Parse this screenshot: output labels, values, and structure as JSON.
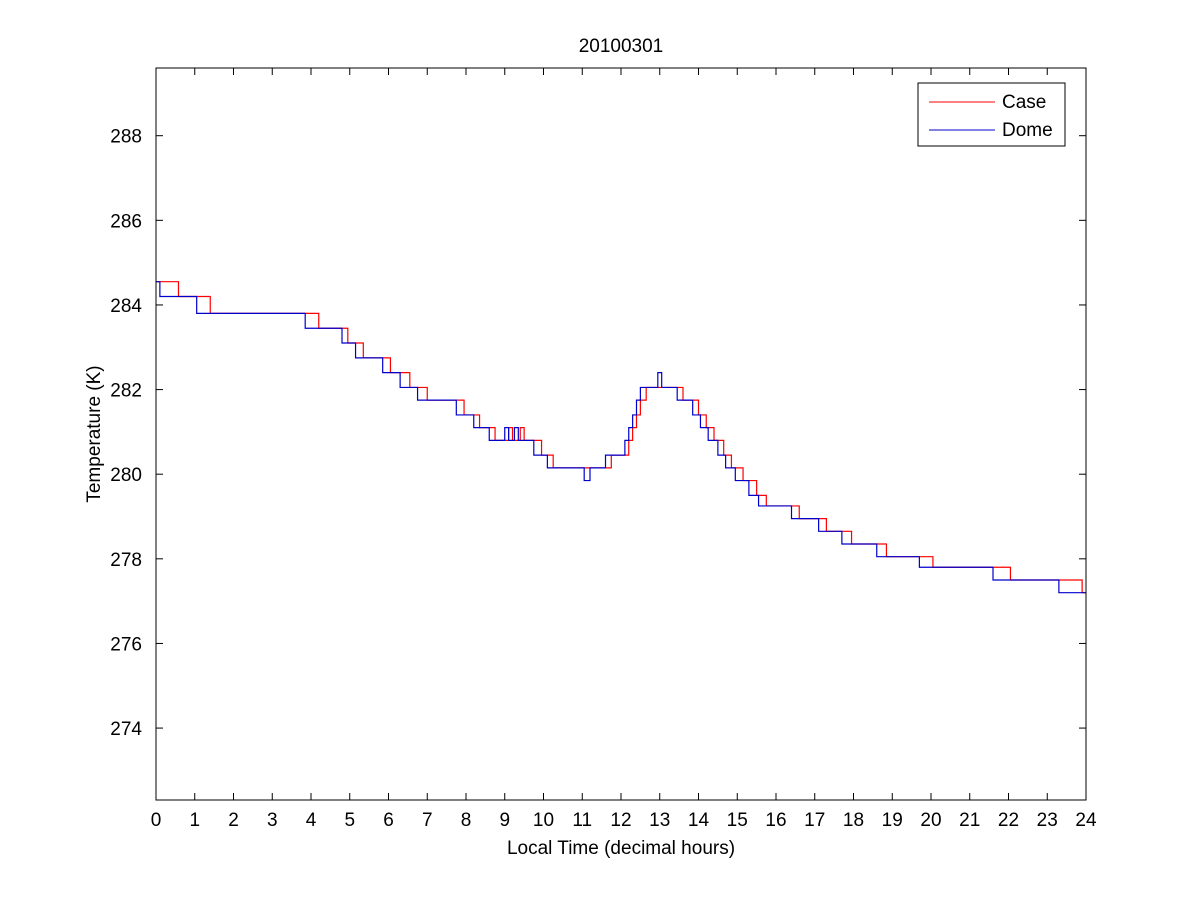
{
  "chart_data": {
    "type": "line",
    "title": "20100301",
    "xlabel": "Local Time (decimal hours)",
    "ylabel": "Temperature (K)",
    "xlim": [
      0,
      24
    ],
    "ylim": [
      272.3,
      289.6
    ],
    "xticks": [
      0,
      1,
      2,
      3,
      4,
      5,
      6,
      7,
      8,
      9,
      10,
      11,
      12,
      13,
      14,
      15,
      16,
      17,
      18,
      19,
      20,
      21,
      22,
      23,
      24
    ],
    "yticks": [
      274,
      276,
      278,
      280,
      282,
      284,
      286,
      288
    ],
    "grid": false,
    "legend_position": "top-right",
    "series": [
      {
        "name": "Case",
        "color": "#ff0000",
        "step": true,
        "points": [
          [
            0.0,
            284.55
          ],
          [
            0.58,
            284.2
          ],
          [
            1.4,
            283.8
          ],
          [
            4.2,
            283.45
          ],
          [
            4.95,
            283.1
          ],
          [
            5.35,
            282.75
          ],
          [
            6.05,
            282.4
          ],
          [
            6.55,
            282.05
          ],
          [
            7.0,
            281.75
          ],
          [
            7.95,
            281.4
          ],
          [
            8.35,
            281.1
          ],
          [
            8.75,
            280.8
          ],
          [
            9.1,
            281.1
          ],
          [
            9.2,
            280.8
          ],
          [
            9.4,
            281.1
          ],
          [
            9.5,
            280.8
          ],
          [
            9.95,
            280.45
          ],
          [
            10.25,
            280.15
          ],
          [
            11.75,
            280.45
          ],
          [
            12.2,
            280.8
          ],
          [
            12.3,
            281.1
          ],
          [
            12.4,
            281.4
          ],
          [
            12.5,
            281.75
          ],
          [
            12.65,
            282.05
          ],
          [
            13.6,
            281.75
          ],
          [
            14.0,
            281.4
          ],
          [
            14.2,
            281.1
          ],
          [
            14.4,
            280.8
          ],
          [
            14.65,
            280.45
          ],
          [
            14.85,
            280.15
          ],
          [
            15.15,
            279.85
          ],
          [
            15.5,
            279.5
          ],
          [
            15.75,
            279.25
          ],
          [
            16.6,
            278.95
          ],
          [
            17.3,
            278.65
          ],
          [
            17.95,
            278.35
          ],
          [
            18.85,
            278.05
          ],
          [
            20.05,
            277.8
          ],
          [
            22.05,
            277.5
          ],
          [
            23.9,
            277.2
          ],
          [
            24.0,
            277.2
          ]
        ]
      },
      {
        "name": "Dome",
        "color": "#0000cc",
        "step": true,
        "points": [
          [
            0.0,
            284.55
          ],
          [
            0.1,
            284.2
          ],
          [
            1.05,
            283.8
          ],
          [
            3.85,
            283.45
          ],
          [
            4.8,
            283.1
          ],
          [
            5.15,
            282.75
          ],
          [
            5.85,
            282.4
          ],
          [
            6.3,
            282.05
          ],
          [
            6.75,
            281.75
          ],
          [
            7.75,
            281.4
          ],
          [
            8.2,
            281.1
          ],
          [
            8.6,
            280.8
          ],
          [
            9.0,
            281.1
          ],
          [
            9.1,
            280.8
          ],
          [
            9.25,
            281.1
          ],
          [
            9.35,
            280.8
          ],
          [
            9.75,
            280.45
          ],
          [
            10.1,
            280.15
          ],
          [
            11.05,
            279.85
          ],
          [
            11.2,
            280.15
          ],
          [
            11.6,
            280.45
          ],
          [
            12.1,
            280.8
          ],
          [
            12.2,
            281.1
          ],
          [
            12.3,
            281.4
          ],
          [
            12.4,
            281.75
          ],
          [
            12.5,
            282.05
          ],
          [
            12.95,
            282.4
          ],
          [
            13.05,
            282.05
          ],
          [
            13.45,
            281.75
          ],
          [
            13.85,
            281.4
          ],
          [
            14.05,
            281.1
          ],
          [
            14.25,
            280.8
          ],
          [
            14.5,
            280.45
          ],
          [
            14.7,
            280.15
          ],
          [
            14.95,
            279.85
          ],
          [
            15.3,
            279.5
          ],
          [
            15.55,
            279.25
          ],
          [
            16.4,
            278.95
          ],
          [
            17.1,
            278.65
          ],
          [
            17.7,
            278.35
          ],
          [
            18.6,
            278.05
          ],
          [
            19.7,
            277.8
          ],
          [
            21.6,
            277.5
          ],
          [
            23.3,
            277.2
          ],
          [
            24.0,
            277.2
          ]
        ]
      }
    ]
  }
}
